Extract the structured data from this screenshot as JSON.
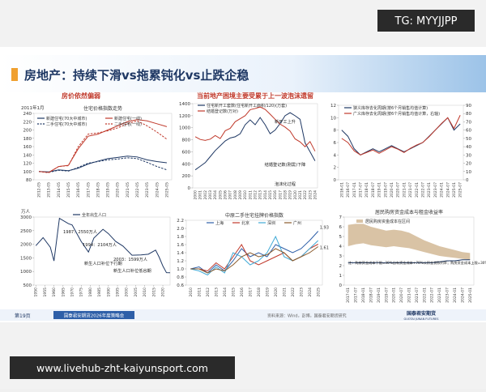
{
  "watermark_top": "TG: MYYJJPP",
  "slide_title": "房地产：持续下滑vs拖累钝化vs止跌企稳",
  "section_headings": [
    "房价依然偏弱",
    "当前地产困境主要受累于上一波泡沫遗留"
  ],
  "footer": {
    "page": "第19页",
    "report": "国泰君安期货2026年度策略会",
    "source": "资料来源：Wind，彭博，国泰君安期货研究",
    "logo_cn": "国泰君安期货",
    "logo_en": "GUOTAI JUNAN FUTURES"
  },
  "watermark_bottom": "www.livehub-zht-kaiyunsport.com",
  "chart_data": [
    {
      "type": "line",
      "title": "住宅价格指数走势",
      "ylabel": "2011年1月",
      "categories": [
        "2012-05",
        "2013-05",
        "2014-05",
        "2015-05",
        "2016-05",
        "2017-05",
        "2018-05",
        "2019-05",
        "2020-05",
        "2021-05",
        "2022-05",
        "2023-05",
        "2024-05",
        "2025-05"
      ],
      "series": [
        {
          "name": "新建住宅(70大中城市)",
          "color": "#1f3864",
          "dashed": false,
          "values": [
            100,
            99,
            104,
            102,
            108,
            118,
            125,
            131,
            134,
            137,
            135,
            128,
            124,
            121
          ]
        },
        {
          "name": "新建住宅(一线)",
          "color": "#c0392b",
          "dashed": false,
          "values": [
            100,
            98,
            112,
            115,
            155,
            185,
            190,
            200,
            210,
            220,
            225,
            222,
            215,
            208
          ]
        },
        {
          "name": "二手住宅(70大中城市)",
          "color": "#1f3864",
          "dashed": true,
          "values": [
            100,
            98,
            103,
            101,
            110,
            120,
            124,
            128,
            130,
            133,
            131,
            122,
            112,
            104
          ]
        },
        {
          "name": "二手住宅(一线)",
          "color": "#c0392b",
          "dashed": true,
          "values": [
            100,
            97,
            112,
            114,
            160,
            190,
            193,
            198,
            205,
            215,
            222,
            210,
            195,
            178
          ]
        }
      ],
      "ylim": [
        80,
        240
      ],
      "yticks": [
        80,
        100,
        120,
        140,
        160,
        180,
        200,
        220,
        240
      ],
      "grid": false
    },
    {
      "type": "line",
      "annotations": [
        "新开工上升",
        "结婚登记数(刚需)下降",
        "泡沫化过程"
      ],
      "categories": [
        "2000",
        "2001",
        "2002",
        "2003",
        "2004",
        "2005",
        "2006",
        "2007",
        "2008",
        "2009",
        "2010",
        "2011",
        "2012",
        "2013",
        "2014",
        "2015",
        "2016",
        "2017",
        "2018",
        "2019",
        "2020",
        "2021",
        "2022",
        "2023",
        "2024"
      ],
      "series": [
        {
          "name": "住宅新开工套数(住宅新开工面积/120)(万套)",
          "color": "#1f3864",
          "values": [
            300,
            360,
            420,
            520,
            620,
            700,
            780,
            830,
            850,
            900,
            1050,
            1130,
            1050,
            1170,
            1050,
            900,
            960,
            1070,
            1200,
            1250,
            1200,
            1140,
            750,
            600,
            450
          ]
        },
        {
          "name": "结婚登记数(万对)",
          "color": "#c0392b",
          "values": [
            850,
            805,
            790,
            810,
            870,
            820,
            950,
            990,
            1100,
            1150,
            1200,
            1300,
            1320,
            1345,
            1305,
            1225,
            1140,
            1060,
            1010,
            945,
            815,
            765,
            685,
            770,
            610
          ]
        }
      ],
      "ylim": [
        0,
        1400
      ],
      "yticks": [
        0,
        200,
        400,
        600,
        800,
        1000,
        1200,
        1400
      ],
      "grid": false
    },
    {
      "type": "line",
      "categories": [
        "2016-01",
        "2016-07",
        "2017-01",
        "2017-07",
        "2018-01",
        "2018-07",
        "2019-01",
        "2019-07",
        "2020-01",
        "2020-07",
        "2021-01",
        "2021-07",
        "2022-01",
        "2022-07",
        "2023-01",
        "2023-07",
        "2024-01",
        "2024-07",
        "2025-01",
        "2025-07"
      ],
      "series": [
        {
          "name": "狭义库存去化周期(按6个月销售均值计算)",
          "color": "#1f3864",
          "values": [
            8,
            7,
            5,
            4,
            4.5,
            5,
            4.5,
            5,
            5.5,
            5,
            4.5,
            5,
            5.5,
            6,
            7,
            8,
            9,
            10,
            8,
            9
          ]
        },
        {
          "name": "广义库存去化周期(按6个月销售均值计算，右轴)",
          "color": "#c0392b",
          "axis": "y2",
          "values": [
            50,
            45,
            35,
            30,
            33,
            36,
            32,
            36,
            40,
            37,
            33,
            38,
            42,
            45,
            52,
            60,
            68,
            75,
            62,
            78
          ]
        }
      ],
      "ylim": [
        0,
        12
      ],
      "yticks": [
        0,
        2,
        4,
        6,
        8,
        10,
        12
      ],
      "y2lim": [
        0,
        90
      ],
      "y2ticks": [
        0,
        10,
        20,
        30,
        40,
        50,
        60,
        70,
        80,
        90
      ],
      "grid": false
    },
    {
      "type": "line",
      "ylabel": "万人",
      "annotations": [
        "1987：2550万人",
        "1994：2104万人",
        "2003：1599万人",
        "新生人口补位下行期",
        "新生人口补位低谷期"
      ],
      "x": [
        1950,
        1954,
        1958,
        1960,
        1963,
        1968,
        1970,
        1975,
        1979,
        1982,
        1987,
        1990,
        1994,
        1998,
        2003,
        2008,
        2012,
        2016,
        2018,
        2020,
        2022,
        2024
      ],
      "series": [
        {
          "name": "全年出生人口",
          "color": "#1f3864",
          "values": [
            1950,
            2245,
            1889,
            1389,
            2954,
            2757,
            2710,
            2102,
            1715,
            2230,
            2550,
            2391,
            2104,
            1934,
            1599,
            1608,
            1635,
            1786,
            1523,
            1202,
            956,
            954
          ]
        }
      ],
      "xlim": [
        1949,
        2024
      ],
      "xticks": [
        1950,
        1955,
        1960,
        1965,
        1970,
        1975,
        1980,
        1985,
        1990,
        1995,
        2000,
        2005,
        2010,
        2015,
        2020
      ],
      "ylim": [
        500,
        3000
      ],
      "yticks": [
        500,
        1000,
        1500,
        2000,
        2500,
        3000
      ],
      "grid": false
    },
    {
      "type": "line",
      "title": "中原二手住宅挂牌价格指数",
      "categories": [
        "2010",
        "2011",
        "2012",
        "2013",
        "2014",
        "2015",
        "2016",
        "2017",
        "2018",
        "2019",
        "2020",
        "2021",
        "2022",
        "2023",
        "2024",
        "2025"
      ],
      "series": [
        {
          "name": "上海",
          "color": "#2e5fa8",
          "label_last": true,
          "values": [
            1.0,
            1.05,
            0.9,
            1.1,
            0.95,
            1.2,
            1.5,
            1.3,
            1.4,
            1.3,
            1.6,
            1.5,
            1.4,
            1.5,
            1.7,
            1.93
          ]
        },
        {
          "name": "北京",
          "color": "#c0392b",
          "label_last": true,
          "values": [
            1.0,
            1.0,
            0.95,
            1.15,
            1.0,
            1.3,
            1.6,
            1.2,
            1.1,
            1.2,
            1.3,
            1.4,
            1.2,
            1.3,
            1.5,
            1.61
          ]
        },
        {
          "name": "深圳",
          "color": "#3fa9d6",
          "label_last": false,
          "values": [
            1.0,
            0.95,
            0.85,
            1.05,
            0.9,
            1.4,
            1.3,
            1.1,
            1.2,
            1.4,
            1.8,
            1.3,
            1.2,
            1.3,
            1.5,
            1.7
          ]
        },
        {
          "name": "广州",
          "color": "#8a5a2b",
          "label_last": false,
          "values": [
            1.0,
            1.0,
            0.9,
            1.0,
            0.95,
            1.1,
            1.3,
            1.4,
            1.3,
            1.35,
            1.5,
            1.4,
            1.2,
            1.3,
            1.4,
            1.55
          ]
        }
      ],
      "ylim": [
        0.6,
        2.2
      ],
      "yticks": [
        0.6,
        0.8,
        {
          "value": 1,
          "label": "1.0"
        },
        1.2,
        1.4,
        1.6,
        1.8,
        {
          "value": 2,
          "label": "2.0"
        },
        2.2
      ],
      "grid": false
    },
    {
      "type": "line",
      "title": "居民购房资金成本与租金收益率",
      "annotations": [
        "注：购房资金成本下限=30%自有资金成本+70%公积金贷款利率；购房资金成本上限=30%自有资金成本+70%商业贷款利率"
      ],
      "categories": [
        "2017-01",
        "2017-07",
        "2018-01",
        "2018-07",
        "2019-01",
        "2019-07",
        "2020-01",
        "2020-07",
        "2021-01",
        "2021-07",
        "2022-01",
        "2022-07",
        "2023-01",
        "2023-07",
        "2024-01",
        "2024-07",
        "2025-01"
      ],
      "band": {
        "name": "居民购房资金成本在区间",
        "color": "#d9c3a5",
        "upper": [
          6.2,
          6.3,
          6.3,
          6.0,
          5.8,
          5.6,
          5.7,
          5.6,
          5.4,
          5.0,
          4.6,
          4.3,
          4.0,
          3.8,
          3.6,
          3.4,
          3.3
        ],
        "lower": [
          4.0,
          4.2,
          4.3,
          4.1,
          4.0,
          3.9,
          4.0,
          3.9,
          3.8,
          3.6,
          3.4,
          3.2,
          3.0,
          2.9,
          2.8,
          2.7,
          2.6
        ]
      },
      "series": [
        {
          "color": "#1f3864",
          "values": [
            2.3,
            2.3,
            2.3,
            2.3,
            2.3,
            2.3,
            2.3,
            2.3,
            2.3,
            2.3,
            2.3,
            2.3,
            2.4,
            2.5,
            2.5,
            2.6,
            2.6
          ]
        }
      ],
      "ylim": [
        0,
        7
      ],
      "yticks": [
        0,
        1,
        2,
        3,
        4,
        5,
        6,
        7
      ],
      "grid": false
    }
  ]
}
